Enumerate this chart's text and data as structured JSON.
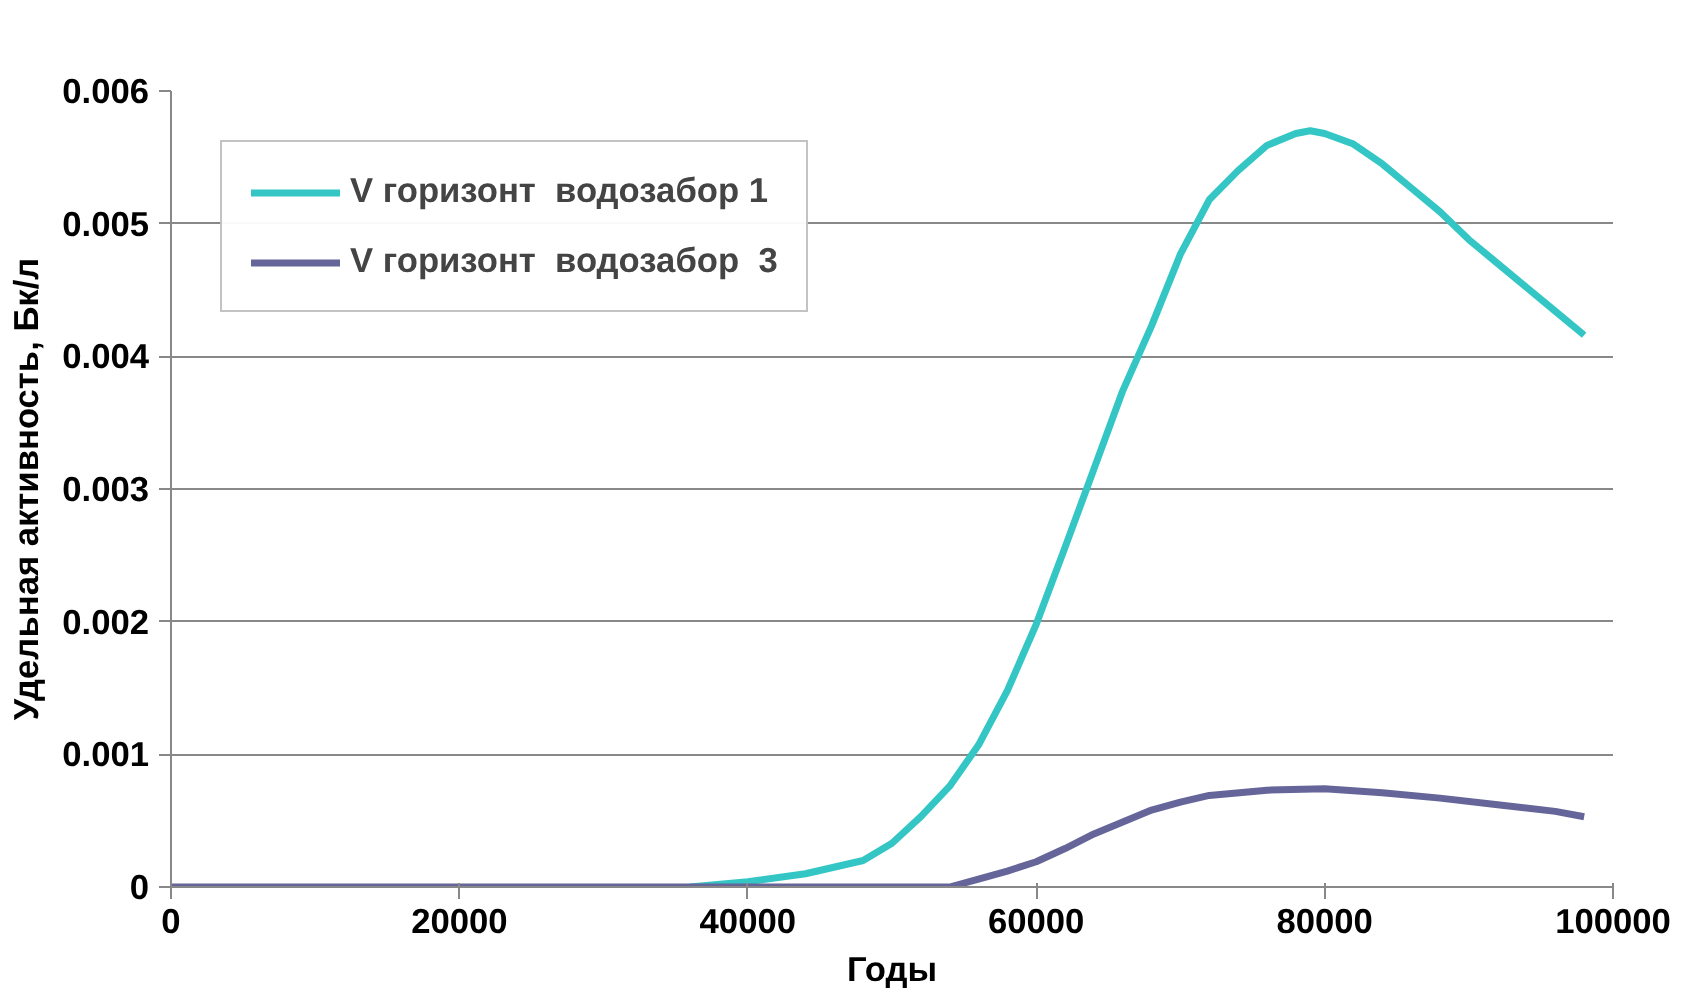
{
  "chart_data": {
    "type": "line",
    "xlabel": "Годы",
    "ylabel": "Удельная активность, Бк/л",
    "xlim": [
      0,
      100000
    ],
    "xticks": [
      0,
      20000,
      40000,
      60000,
      80000,
      100000
    ],
    "ylim": [
      0,
      0.006
    ],
    "yticks": [
      0,
      0.001,
      0.002,
      0.003,
      0.004,
      0.005,
      0.006
    ],
    "grid": "y",
    "legend": "top left",
    "marker": "none",
    "line_style": "solid",
    "series": [
      {
        "name": "V горизонт  водозабор 1",
        "color": "#33c6c4",
        "x": [
          36000,
          40000,
          44000,
          48000,
          50000,
          52000,
          54000,
          56000,
          58000,
          60000,
          62000,
          64000,
          66000,
          68000,
          70000,
          72000,
          74000,
          76000,
          78000,
          79000,
          80000,
          82000,
          84000,
          86000,
          88000,
          90000,
          92000,
          94000,
          96000,
          98000
        ],
        "values": [
          0,
          4e-05,
          0.0001,
          0.0002,
          0.00033,
          0.00053,
          0.00076,
          0.00107,
          0.00148,
          0.00198,
          0.00256,
          0.00315,
          0.00374,
          0.00423,
          0.00477,
          0.00518,
          0.0054,
          0.00559,
          0.00568,
          0.0057,
          0.00568,
          0.0056,
          0.00545,
          0.00527,
          0.00509,
          0.00488,
          0.0047,
          0.00452,
          0.00434,
          0.00416
        ]
      },
      {
        "name": "V горизонт  водозабор  3",
        "color": "#65659a",
        "x": [
          0,
          10000,
          20000,
          30000,
          40000,
          50000,
          52000,
          54000,
          56000,
          58000,
          60000,
          62000,
          64000,
          66000,
          68000,
          70000,
          72000,
          76000,
          80000,
          84000,
          88000,
          92000,
          96000,
          98000
        ],
        "values": [
          0,
          0,
          0,
          0,
          0,
          0,
          0,
          0,
          6e-05,
          0.00012,
          0.00019,
          0.00029,
          0.0004,
          0.00049,
          0.00058,
          0.00064,
          0.00069,
          0.00073,
          0.00074,
          0.00071,
          0.00067,
          0.00062,
          0.00057,
          0.00053
        ]
      }
    ]
  }
}
